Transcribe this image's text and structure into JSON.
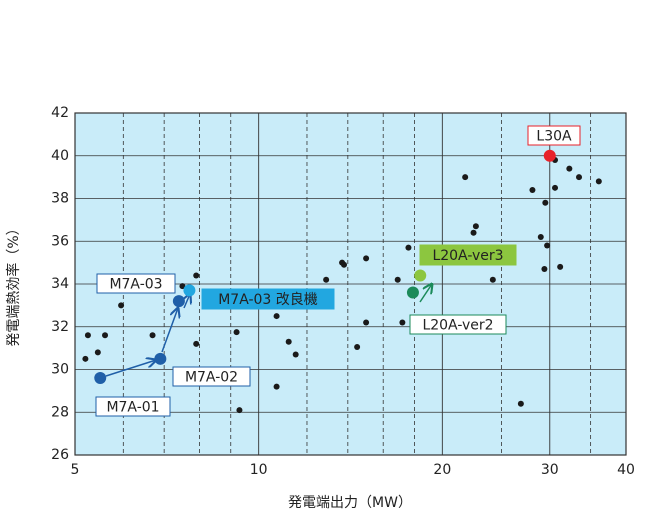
{
  "chart_data": {
    "type": "scatter",
    "x_label": "発電端出力（MW）",
    "y_label": "発電端熱効率（%）",
    "x_log": true,
    "xlim": [
      5,
      40
    ],
    "xticks": [
      5,
      10,
      20,
      30,
      40
    ],
    "x_minor_grid": [
      6,
      7,
      8,
      9,
      12,
      14,
      16,
      18,
      25,
      35
    ],
    "ylim": [
      26,
      42
    ],
    "yticks": [
      26,
      28,
      30,
      32,
      34,
      36,
      38,
      40,
      42
    ],
    "grid": true,
    "plot_color": "#c9ecf9",
    "series": [
      {
        "color": "#1a1a1a",
        "x": [
          5.25,
          5.2,
          5.45,
          5.6,
          5.95,
          6.7,
          7.5,
          7.9,
          7.9,
          9.2,
          9.3,
          10.7,
          10.7,
          11.2,
          11.5,
          12.9,
          13.7,
          13.8,
          14.5,
          15.0,
          15.0,
          16.9,
          17.2,
          17.6,
          21.8,
          22.5,
          22.7,
          24.2,
          26.9,
          28.1,
          29.0,
          29.5,
          29.4,
          29.7,
          30.6,
          30.6,
          31.2,
          32.3,
          33.5,
          36.1
        ],
        "values": [
          31.6,
          30.5,
          30.8,
          31.6,
          33.0,
          31.6,
          33.9,
          31.2,
          34.4,
          31.75,
          28.1,
          29.2,
          32.5,
          31.3,
          30.7,
          34.2,
          35.0,
          34.9,
          31.05,
          32.2,
          35.2,
          34.2,
          32.2,
          35.7,
          39.0,
          36.4,
          36.7,
          34.2,
          28.4,
          38.4,
          36.2,
          37.8,
          34.7,
          35.8,
          38.5,
          39.8,
          34.8,
          39.4,
          39.0,
          38.8
        ]
      },
      {
        "name": "M7A-01",
        "color": "#1f5fa8",
        "x": [
          5.5
        ],
        "values": [
          29.6
        ]
      },
      {
        "name": "M7A-02",
        "color": "#1f5fa8",
        "x": [
          6.9
        ],
        "values": [
          30.5
        ]
      },
      {
        "name": "M7A-03",
        "color": "#1f5fa8",
        "x": [
          7.4
        ],
        "values": [
          33.2
        ]
      },
      {
        "name": "M7A-03 改良機",
        "color": "#22a7e0",
        "x": [
          7.7
        ],
        "values": [
          33.7
        ]
      },
      {
        "name": "L20A-ver2",
        "color": "#1b8a5a",
        "x": [
          17.9
        ],
        "values": [
          33.6
        ]
      },
      {
        "name": "L20A-ver3",
        "color": "#8cc63f",
        "x": [
          18.4
        ],
        "values": [
          34.4
        ]
      },
      {
        "name": "L30A",
        "color": "#e8222a",
        "x": [
          30
        ],
        "values": [
          40.0
        ]
      }
    ]
  }
}
